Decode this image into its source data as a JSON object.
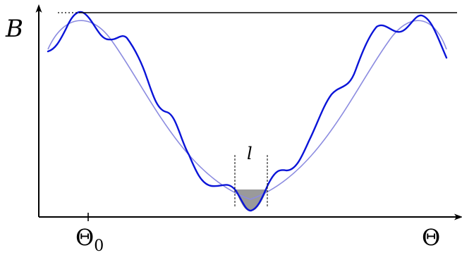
{
  "labels": {
    "y_axis": "B",
    "x_axis": "Θ",
    "x_marker": "Θ",
    "x_marker_subscript": "0",
    "well_width": "l"
  },
  "colors": {
    "ripple_curve": "#0a14d8",
    "smooth_curve": "#8c8ce0",
    "trapped_fill": "#9a9a9a",
    "axes": "#000000"
  }
}
